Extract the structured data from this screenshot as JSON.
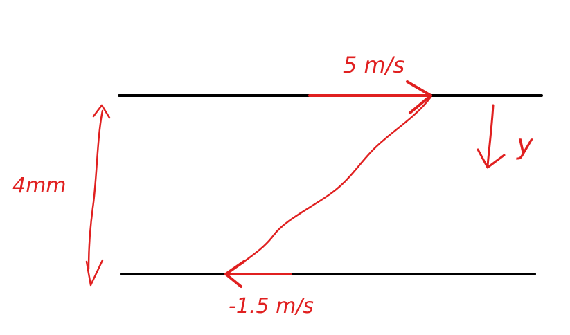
{
  "diagram": {
    "top_velocity_label": "5 m/s",
    "bottom_velocity_label": "-1.5 m/s",
    "gap_label": "4mm",
    "axis_label": "y",
    "colors": {
      "plate": "#000000",
      "annotation": "#e02020",
      "background": "#ffffff"
    }
  }
}
